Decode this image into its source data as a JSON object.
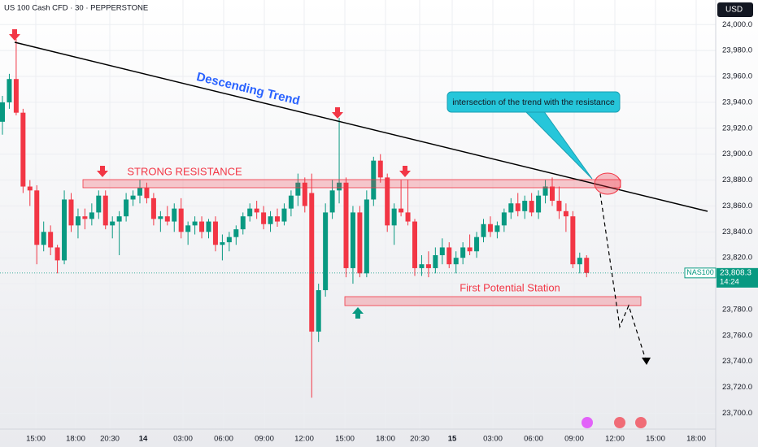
{
  "header": {
    "symbol": "US 100 Cash CFD · 30 · PEPPERSTONE",
    "currency": "USD"
  },
  "chart_data": {
    "type": "candlestick",
    "up_color": "#089981",
    "down_color": "#f23645",
    "open": [
      23925,
      23940,
      23958,
      23932,
      23875,
      23872,
      23830,
      23840,
      23828,
      23818,
      23865,
      23845,
      23852,
      23850,
      23855,
      23868,
      23845,
      23848,
      23852,
      23865,
      23868,
      23874,
      23866,
      23850,
      23852,
      23848,
      23858,
      23840,
      23845,
      23848,
      23840,
      23848,
      23830,
      23832,
      23836,
      23842,
      23852,
      23858,
      23855,
      23846,
      23852,
      23848,
      23858,
      23868,
      23878,
      23870,
      23763,
      23795,
      23855,
      23872,
      23878,
      23812,
      23855,
      23808,
      23865,
      23895,
      23882,
      23845,
      23858,
      23855,
      23848,
      23812,
      23815,
      23812,
      23822,
      23828,
      23815,
      23820,
      23828,
      23825,
      23836,
      23846,
      23840,
      23845,
      23855,
      23862,
      23856,
      23864,
      23855,
      23868,
      23875,
      23864,
      23856,
      23852,
      23815,
      23820
    ],
    "high": [
      23945,
      23962,
      23989,
      23935,
      23880,
      23876,
      23848,
      23845,
      23830,
      23872,
      23870,
      23858,
      23858,
      23862,
      23872,
      23872,
      23852,
      23856,
      23870,
      23872,
      23880,
      23878,
      23870,
      23856,
      23860,
      23862,
      23866,
      23848,
      23852,
      23852,
      23850,
      23852,
      23838,
      23840,
      23845,
      23855,
      23862,
      23864,
      23860,
      23856,
      23858,
      23862,
      23872,
      23885,
      23882,
      23885,
      23800,
      23862,
      23880,
      23928,
      23882,
      23860,
      23860,
      23872,
      23898,
      23900,
      23885,
      23862,
      23880,
      23880,
      23850,
      23822,
      23825,
      23828,
      23835,
      23832,
      23825,
      23832,
      23838,
      23840,
      23850,
      23852,
      23848,
      23858,
      23866,
      23870,
      23868,
      23870,
      23872,
      23880,
      23882,
      23875,
      23862,
      23856,
      23824,
      23822
    ],
    "low": [
      23915,
      23935,
      23930,
      23870,
      23860,
      23815,
      23825,
      23822,
      23808,
      23815,
      23840,
      23835,
      23842,
      23845,
      23850,
      23842,
      23835,
      23822,
      23848,
      23860,
      23862,
      23862,
      23845,
      23840,
      23845,
      23840,
      23835,
      23830,
      23838,
      23835,
      23835,
      23825,
      23818,
      23825,
      23830,
      23838,
      23848,
      23850,
      23842,
      23840,
      23844,
      23845,
      23852,
      23860,
      23855,
      23712,
      23755,
      23790,
      23850,
      23862,
      23805,
      23800,
      23805,
      23805,
      23860,
      23878,
      23840,
      23830,
      23852,
      23845,
      23806,
      23806,
      23805,
      23808,
      23815,
      23812,
      23808,
      23815,
      23822,
      23820,
      23832,
      23836,
      23835,
      23840,
      23850,
      23852,
      23850,
      23852,
      23850,
      23862,
      23860,
      23850,
      23840,
      23812,
      23808,
      23805
    ],
    "close": [
      23940,
      23958,
      23932,
      23875,
      23872,
      23830,
      23840,
      23828,
      23818,
      23865,
      23845,
      23852,
      23850,
      23855,
      23868,
      23845,
      23848,
      23852,
      23865,
      23868,
      23874,
      23866,
      23850,
      23852,
      23848,
      23858,
      23840,
      23845,
      23848,
      23840,
      23848,
      23830,
      23832,
      23836,
      23842,
      23852,
      23858,
      23855,
      23846,
      23852,
      23848,
      23858,
      23868,
      23878,
      23860,
      23763,
      23795,
      23855,
      23872,
      23878,
      23812,
      23855,
      23808,
      23865,
      23895,
      23882,
      23845,
      23858,
      23855,
      23848,
      23812,
      23815,
      23812,
      23822,
      23828,
      23815,
      23820,
      23828,
      23825,
      23836,
      23846,
      23840,
      23845,
      23855,
      23862,
      23856,
      23864,
      23855,
      23868,
      23875,
      23864,
      23856,
      23852,
      23815,
      23820,
      23808.3
    ],
    "ylim": [
      23689,
      24019
    ],
    "yticks": [
      {
        "value": 23700,
        "label": "23,700.0"
      },
      {
        "value": 23720,
        "label": "23,720.0"
      },
      {
        "value": 23740,
        "label": "23,740.0"
      },
      {
        "value": 23760,
        "label": "23,760.0"
      },
      {
        "value": 23780,
        "label": "23,780.0"
      },
      {
        "value": 23800,
        "label": "23,800.0"
      },
      {
        "value": 23820,
        "label": "23,820.0"
      },
      {
        "value": 23840,
        "label": "23,840.0"
      },
      {
        "value": 23860,
        "label": "23,860.0"
      },
      {
        "value": 23880,
        "label": "23,880.0"
      },
      {
        "value": 23900,
        "label": "23,900.0"
      },
      {
        "value": 23920,
        "label": "23,920.0"
      },
      {
        "value": 23940,
        "label": "23,940.0"
      },
      {
        "value": 23960,
        "label": "23,960.0"
      },
      {
        "value": 23980,
        "label": "23,980.0"
      },
      {
        "value": 24000,
        "label": "24,000.0"
      }
    ],
    "xticks": [
      "15:00",
      "18:00",
      "20:30",
      "14",
      "03:00",
      "06:00",
      "09:00",
      "12:00",
      "15:00",
      "18:00",
      "20:30",
      "15",
      "03:00",
      "06:00",
      "09:00",
      "12:00",
      "15:00",
      "18:00"
    ],
    "grid": true,
    "last_price": {
      "value": 23808.3,
      "label": "23,808.3",
      "symbol": "NAS100",
      "countdown": "14:24"
    },
    "annotations": {
      "trend": "Descending Trend",
      "resistance": "STRONG RESISTANCE",
      "station": "First Potential Station",
      "callout": "intersection of the trend with the resistance"
    }
  }
}
